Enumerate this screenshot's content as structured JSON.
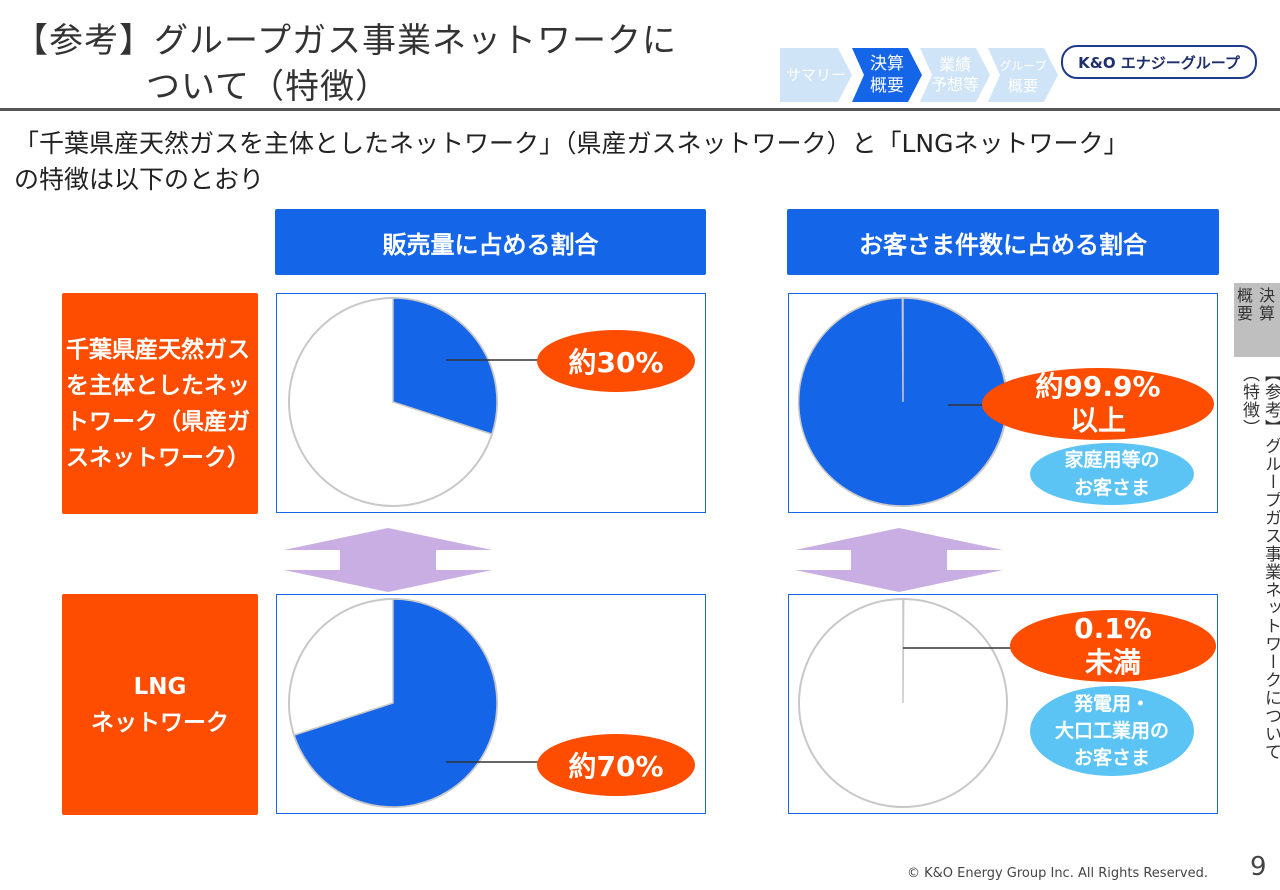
{
  "title": {
    "line1": "【参考】グループガス事業ネットワークに",
    "line2": "ついて（特徴）"
  },
  "subtitle": {
    "line1": "「千葉県産天然ガスを主体としたネットワーク」（県産ガスネットワーク）と「LNGネットワーク」",
    "line2": "の特徴は以下のとおり"
  },
  "nav": {
    "steps": [
      {
        "label": "サマリー",
        "active": false
      },
      {
        "label1": "決算",
        "label2": "概要",
        "active": true
      },
      {
        "label1": "業績",
        "label2": "予想等",
        "active": false
      },
      {
        "label1": "グループ",
        "label2": "概要",
        "active": false
      }
    ],
    "colors": {
      "active": "#1565e8",
      "inactive": "#cfe4f7"
    }
  },
  "logo": "K&O エナジーグループ",
  "columns": {
    "sales": "販売量に占める割合",
    "customers": "お客さま件数に占める割合"
  },
  "rows": {
    "prefectural": "千葉県産天然ガスを主体としたネットワーク（県産ガスネットワーク）",
    "lng_line1": "LNG",
    "lng_line2": "ネットワーク"
  },
  "chart_data": [
    {
      "type": "pie",
      "row": "prefectural",
      "column": "sales",
      "share": 0.3,
      "label": "約30%"
    },
    {
      "type": "pie",
      "row": "lng",
      "column": "sales",
      "share": 0.7,
      "label": "約70%"
    },
    {
      "type": "pie",
      "row": "prefectural",
      "column": "customers",
      "share": 0.999,
      "label_line1": "約99.9%",
      "label_line2": "以上",
      "note_line1": "家庭用等の",
      "note_line2": "お客さま"
    },
    {
      "type": "pie",
      "row": "lng",
      "column": "customers",
      "share": 0.001,
      "label_line1": "0.1%",
      "label_line2": "未満",
      "note_line1": "発電用・",
      "note_line2": "大口工業用の",
      "note_line3": "お客さま"
    }
  ],
  "colors": {
    "blue": "#1565e8",
    "orange": "#ff4d00",
    "lightblue": "#5bc4f5",
    "arrow": "#c8aee3",
    "pie_empty": "#ffffff",
    "pie_border": "#c8c8c8"
  },
  "sidebar": {
    "tab_col1": "決算",
    "tab_col2": "概要",
    "vertical_title": "【参考】グループガス事業ネットワークについて（特徴）"
  },
  "footer": "© K&O Energy Group Inc. All Rights Reserved.",
  "page_number": "9"
}
